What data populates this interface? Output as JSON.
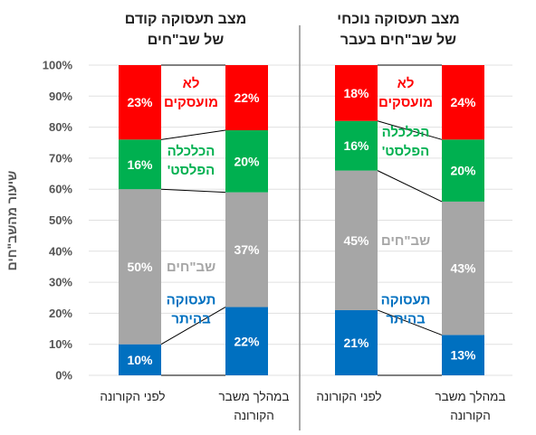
{
  "chart_data": {
    "type": "bar",
    "stacked": true,
    "normalized": true,
    "ylabel": "שיעור מהשב\"חים",
    "yticks": [
      "0%",
      "10%",
      "20%",
      "30%",
      "40%",
      "50%",
      "60%",
      "70%",
      "80%",
      "90%",
      "100%"
    ],
    "ylim": [
      0,
      100
    ],
    "series": [
      {
        "name": "תעסוקה בהיתר",
        "label_lines": [
          "תעסוקה",
          "בהיתר"
        ],
        "color": "#0070C0"
      },
      {
        "name": "שב\"חים",
        "label_lines": [
          "שב\"חים"
        ],
        "color": "#A6A6A6"
      },
      {
        "name": "הכלכלה הפלסט'",
        "label_lines": [
          "הכלכלה",
          "הפלסט'"
        ],
        "color": "#00B050"
      },
      {
        "name": "לא מועסקים",
        "label_lines": [
          "לא",
          "מועסקים"
        ],
        "color": "#FF0000"
      }
    ],
    "panels": [
      {
        "title_lines": [
          "מצב תעסוקה נוכחי",
          "של שב\"חים בעבר"
        ],
        "categories": [
          {
            "label_lines": [
              "לפני הקורונה"
            ]
          },
          {
            "label_lines": [
              "במהלך משבר",
              "הקורונה"
            ]
          }
        ],
        "values": [
          [
            21,
            45,
            16,
            18
          ],
          [
            13,
            43,
            20,
            24
          ]
        ],
        "labels": [
          [
            "21%",
            "45%",
            "16%",
            "18%"
          ],
          [
            "13%",
            "43%",
            "20%",
            "24%"
          ]
        ]
      },
      {
        "title_lines": [
          "מצב תעסוקה קודם",
          "של שב\"חים"
        ],
        "categories": [
          {
            "label_lines": [
              "לפני הקורונה"
            ]
          },
          {
            "label_lines": [
              "במהלך משבר",
              "הקורונה"
            ]
          }
        ],
        "values": [
          [
            10,
            50,
            16,
            23
          ],
          [
            22,
            37,
            20,
            22
          ]
        ],
        "labels": [
          [
            "10%",
            "50%",
            "16%",
            "23%"
          ],
          [
            "22%",
            "37%",
            "20%",
            "22%"
          ]
        ]
      }
    ]
  }
}
